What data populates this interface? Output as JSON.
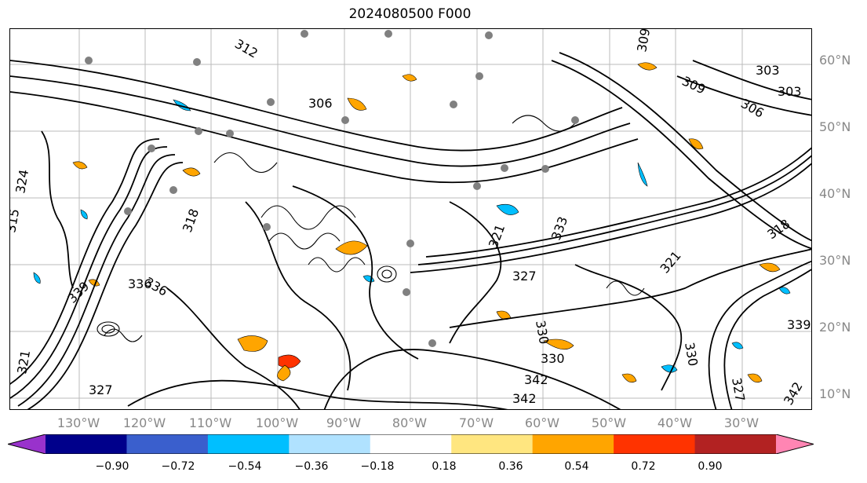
{
  "title": "2024080500 F000",
  "lat_labels": [
    "60°N",
    "50°N",
    "40°N",
    "30°N",
    "20°N",
    "10°N"
  ],
  "lon_labels": [
    "130°W",
    "120°W",
    "110°W",
    "100°W",
    "90°W",
    "80°W",
    "70°W",
    "60°W",
    "50°W",
    "40°W",
    "30°W"
  ],
  "contour_labels": [
    "306",
    "309",
    "303",
    "306",
    "309",
    "303",
    "312",
    "318",
    "324",
    "315",
    "327",
    "321",
    "330",
    "333",
    "336",
    "339",
    "342",
    "330",
    "330",
    "327",
    "321",
    "318",
    "342",
    "342",
    "339",
    "327",
    "336",
    "321"
  ],
  "colorbar": {
    "ticks": [
      "−0.90",
      "−0.72",
      "−0.54",
      "−0.36",
      "−0.18",
      "0.18",
      "0.36",
      "0.54",
      "0.72",
      "0.90"
    ],
    "colors": [
      "#9932cc",
      "#00008b",
      "#3a5fcd",
      "#00bfff",
      "#b0e2ff",
      "#ffffff",
      "#ffe680",
      "#ffa500",
      "#ff3300",
      "#b22222",
      "#ff85b3"
    ]
  },
  "map": {
    "features": [
      "black contour lines (isentropes)",
      "gray dots",
      "orange and blue shaded contours"
    ]
  }
}
